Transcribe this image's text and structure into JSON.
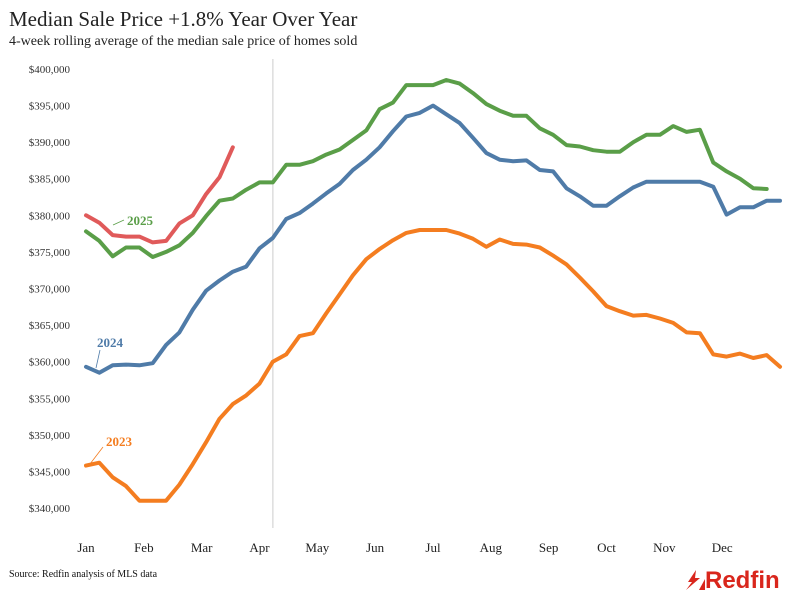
{
  "chart_data": {
    "type": "line",
    "title": "Median Sale Price +1.8% Year Over Year",
    "subtitle": "4-week rolling average of the median sale price of homes sold",
    "source": "Source: Redfin analysis of MLS data",
    "brand": "Redfin",
    "ylim": [
      337000,
      401500
    ],
    "yticks": [
      340000,
      345000,
      350000,
      355000,
      360000,
      365000,
      370000,
      375000,
      380000,
      385000,
      390000,
      395000,
      400000
    ],
    "ytick_labels": [
      "$340,000",
      "$345,000",
      "$350,000",
      "$355,000",
      "$360,000",
      "$365,000",
      "$370,000",
      "$375,000",
      "$380,000",
      "$385,000",
      "$390,000",
      "$395,000",
      "$400,000"
    ],
    "months": [
      "Jan",
      "Feb",
      "Mar",
      "Apr",
      "May",
      "Jun",
      "Jul",
      "Aug",
      "Sep",
      "Oct",
      "Nov",
      "Dec"
    ],
    "grid": false,
    "reference_line_week": 14,
    "series": [
      {
        "name": "2023",
        "color": "#f47d20",
        "values": [
          345800,
          346200,
          344200,
          343000,
          341000,
          341000,
          341000,
          343200,
          346000,
          349000,
          352200,
          354200,
          355400,
          357000,
          360000,
          361000,
          363500,
          363900,
          366600,
          369200,
          371800,
          374000,
          375400,
          376600,
          377600,
          378000,
          378000,
          378000,
          377500,
          376800,
          375700,
          376700,
          376100,
          376000,
          375600,
          374500,
          373300,
          371500,
          369600,
          367600,
          366900,
          366300,
          366400,
          365900,
          365300,
          364000,
          363900,
          361000,
          360700,
          361100,
          360500,
          360900,
          359300
        ]
      },
      {
        "name": "2024",
        "color": "#4f7ba8",
        "values": [
          359300,
          358500,
          359500,
          359600,
          359500,
          359800,
          362300,
          364000,
          367100,
          369700,
          371100,
          372300,
          373000,
          375500,
          376900,
          379500,
          380300,
          381600,
          383000,
          384300,
          386200,
          387600,
          389300,
          391500,
          393500,
          394000,
          395000,
          393800,
          392600,
          390600,
          388500,
          387600,
          387400,
          387500,
          386200,
          386000,
          383700,
          382600,
          381300,
          381300,
          382600,
          383800,
          384600,
          384600,
          384600,
          384600,
          384600,
          383900,
          380100,
          381100,
          381100,
          382000,
          382000
        ]
      },
      {
        "name": "2025",
        "color": "#5a9e48",
        "values": [
          377800,
          376500,
          374400,
          375600,
          375600,
          374300,
          375000,
          375900,
          377600,
          379900,
          382000,
          382300,
          383500,
          384500,
          384500,
          386900,
          386900,
          387400,
          388300,
          389000,
          390300,
          391600,
          394500,
          395400,
          397800,
          397800,
          397800,
          398500,
          398000,
          396700,
          395200,
          394300,
          393600,
          393600,
          391900,
          391000,
          389600,
          389400,
          388900,
          388700,
          388700,
          390000,
          391000,
          391000,
          392200,
          391400,
          391700,
          387200,
          386000,
          385000,
          383700,
          383600
        ]
      },
      {
        "name": "",
        "color": "#e05a5a",
        "values": [
          380000,
          379000,
          377300,
          377100,
          377100,
          376300,
          376500,
          378900,
          380000,
          382900,
          385200,
          389300
        ]
      }
    ]
  }
}
